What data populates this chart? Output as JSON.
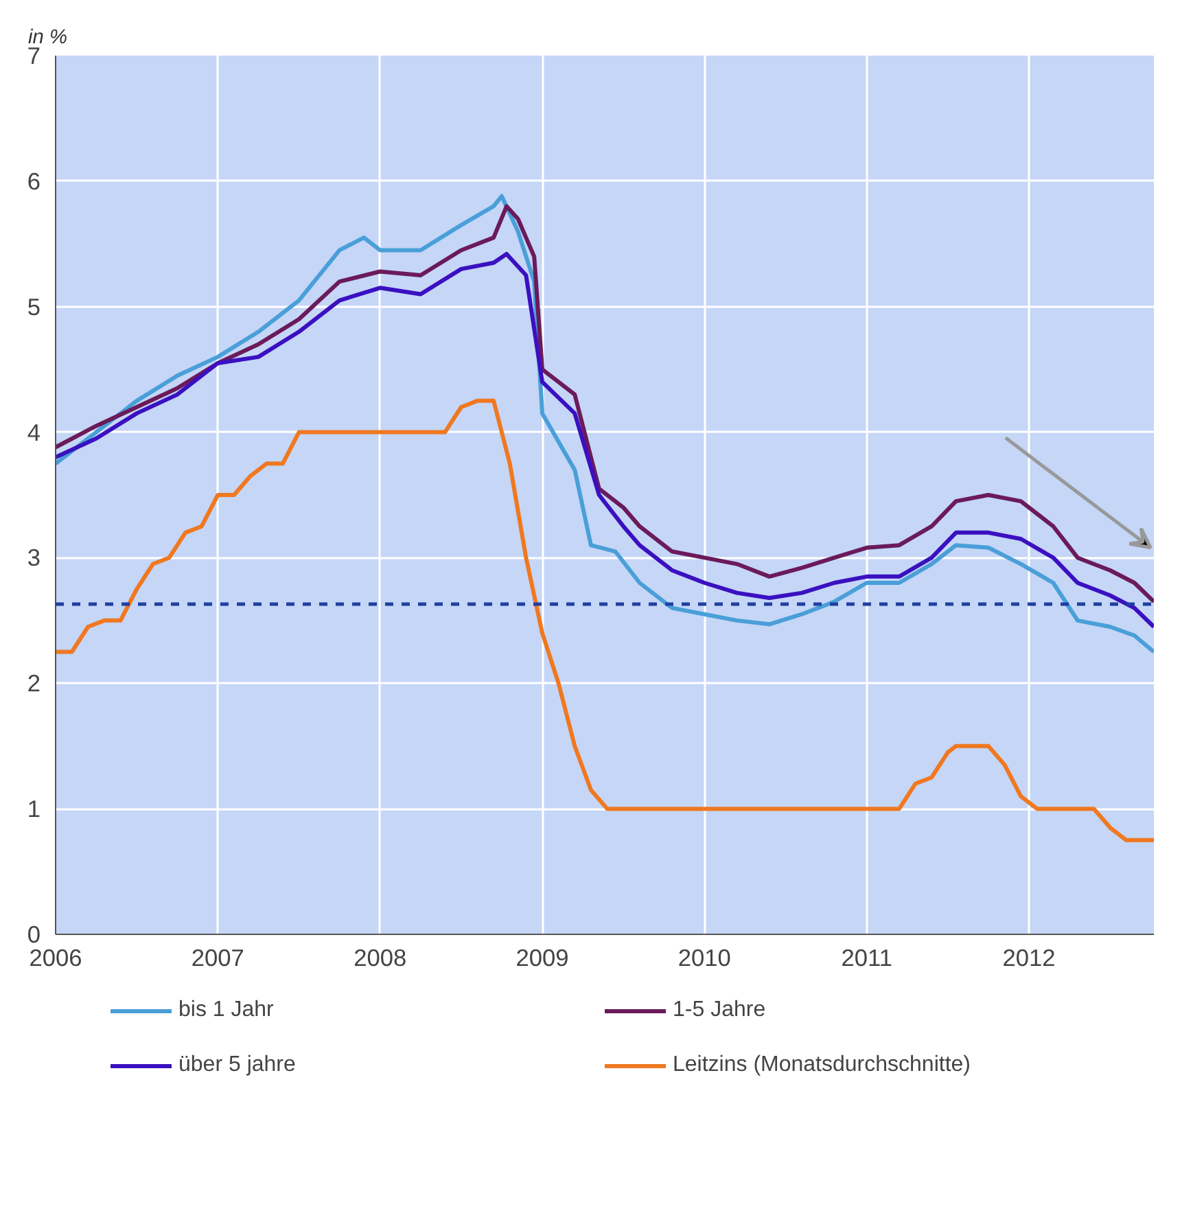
{
  "chart_data": {
    "type": "line",
    "ylabel": "in %",
    "xlim": [
      2006,
      2012.77
    ],
    "xticks": [
      2006,
      2007,
      2008,
      2009,
      2010,
      2011,
      2012
    ],
    "ylim": [
      0,
      7
    ],
    "yticks": [
      0,
      1,
      2,
      3,
      4,
      5,
      6,
      7
    ],
    "grid": true,
    "legend": "bottom",
    "marker": "none",
    "line_style": "solid",
    "ref_lines": [
      {
        "axis": "y",
        "value": 2.63,
        "label": null,
        "color": "#1f3fa0",
        "line_style": "dashed"
      }
    ],
    "series": [
      {
        "name": "bis 1 Jahr",
        "color": "#4a9fd8",
        "x": [
          2006.0,
          2006.25,
          2006.5,
          2006.75,
          2007.0,
          2007.25,
          2007.5,
          2007.75,
          2007.9,
          2008.0,
          2008.25,
          2008.5,
          2008.7,
          2008.75,
          2008.85,
          2008.95,
          2009.0,
          2009.2,
          2009.3,
          2009.45,
          2009.6,
          2009.8,
          2010.0,
          2010.2,
          2010.4,
          2010.6,
          2010.8,
          2011.0,
          2011.2,
          2011.4,
          2011.55,
          2011.75,
          2011.95,
          2012.15,
          2012.3,
          2012.5,
          2012.65,
          2012.77
        ],
        "values": [
          3.75,
          4.0,
          4.25,
          4.45,
          4.6,
          4.8,
          5.05,
          5.45,
          5.55,
          5.45,
          5.45,
          5.65,
          5.8,
          5.88,
          5.6,
          5.2,
          4.15,
          3.7,
          3.1,
          3.05,
          2.8,
          2.6,
          2.55,
          2.5,
          2.47,
          2.55,
          2.65,
          2.8,
          2.8,
          2.95,
          3.1,
          3.08,
          2.95,
          2.8,
          2.5,
          2.45,
          2.38,
          2.25
        ]
      },
      {
        "name": "1-5 Jahre",
        "color": "#6b1a5a",
        "x": [
          2006.0,
          2006.25,
          2006.5,
          2006.75,
          2007.0,
          2007.25,
          2007.5,
          2007.75,
          2008.0,
          2008.25,
          2008.5,
          2008.7,
          2008.78,
          2008.85,
          2008.95,
          2009.0,
          2009.2,
          2009.35,
          2009.5,
          2009.6,
          2009.8,
          2010.0,
          2010.2,
          2010.4,
          2010.6,
          2010.8,
          2011.0,
          2011.2,
          2011.4,
          2011.55,
          2011.75,
          2011.95,
          2012.15,
          2012.3,
          2012.5,
          2012.65,
          2012.77
        ],
        "values": [
          3.88,
          4.05,
          4.2,
          4.35,
          4.55,
          4.7,
          4.9,
          5.2,
          5.28,
          5.25,
          5.45,
          5.55,
          5.8,
          5.7,
          5.4,
          4.5,
          4.3,
          3.55,
          3.4,
          3.25,
          3.05,
          3.0,
          2.95,
          2.85,
          2.92,
          3.0,
          3.08,
          3.1,
          3.25,
          3.45,
          3.5,
          3.45,
          3.25,
          3.0,
          2.9,
          2.8,
          2.65
        ]
      },
      {
        "name": "über 5 jahre",
        "color": "#3a10c0",
        "x": [
          2006.0,
          2006.25,
          2006.5,
          2006.75,
          2007.0,
          2007.25,
          2007.5,
          2007.75,
          2008.0,
          2008.25,
          2008.5,
          2008.7,
          2008.78,
          2008.9,
          2009.0,
          2009.2,
          2009.35,
          2009.5,
          2009.6,
          2009.8,
          2010.0,
          2010.2,
          2010.4,
          2010.6,
          2010.8,
          2011.0,
          2011.2,
          2011.4,
          2011.55,
          2011.75,
          2011.95,
          2012.15,
          2012.3,
          2012.5,
          2012.65,
          2012.77
        ],
        "values": [
          3.8,
          3.95,
          4.15,
          4.3,
          4.55,
          4.6,
          4.8,
          5.05,
          5.15,
          5.1,
          5.3,
          5.35,
          5.42,
          5.25,
          4.4,
          4.15,
          3.5,
          3.25,
          3.1,
          2.9,
          2.8,
          2.72,
          2.68,
          2.72,
          2.8,
          2.85,
          2.85,
          3.0,
          3.2,
          3.2,
          3.15,
          3.0,
          2.8,
          2.7,
          2.6,
          2.45
        ]
      },
      {
        "name": "Leitzins (Monatsdurchschnitte)",
        "color": "#f07820",
        "x": [
          2006.0,
          2006.1,
          2006.2,
          2006.3,
          2006.4,
          2006.5,
          2006.6,
          2006.7,
          2006.8,
          2006.9,
          2007.0,
          2007.1,
          2007.2,
          2007.3,
          2007.4,
          2007.5,
          2008.0,
          2008.4,
          2008.5,
          2008.6,
          2008.7,
          2008.8,
          2008.9,
          2009.0,
          2009.1,
          2009.2,
          2009.3,
          2009.4,
          2011.2,
          2011.3,
          2011.4,
          2011.5,
          2011.55,
          2011.75,
          2011.85,
          2011.95,
          2012.05,
          2012.4,
          2012.5,
          2012.6,
          2012.77
        ],
        "values": [
          2.25,
          2.25,
          2.45,
          2.5,
          2.5,
          2.75,
          2.95,
          3.0,
          3.2,
          3.25,
          3.5,
          3.5,
          3.65,
          3.75,
          3.75,
          4.0,
          4.0,
          4.0,
          4.2,
          4.25,
          4.25,
          3.75,
          3.0,
          2.4,
          2.0,
          1.5,
          1.15,
          1.0,
          1.0,
          1.2,
          1.25,
          1.45,
          1.5,
          1.5,
          1.35,
          1.1,
          1.0,
          1.0,
          0.85,
          0.75,
          0.75
        ]
      }
    ]
  }
}
